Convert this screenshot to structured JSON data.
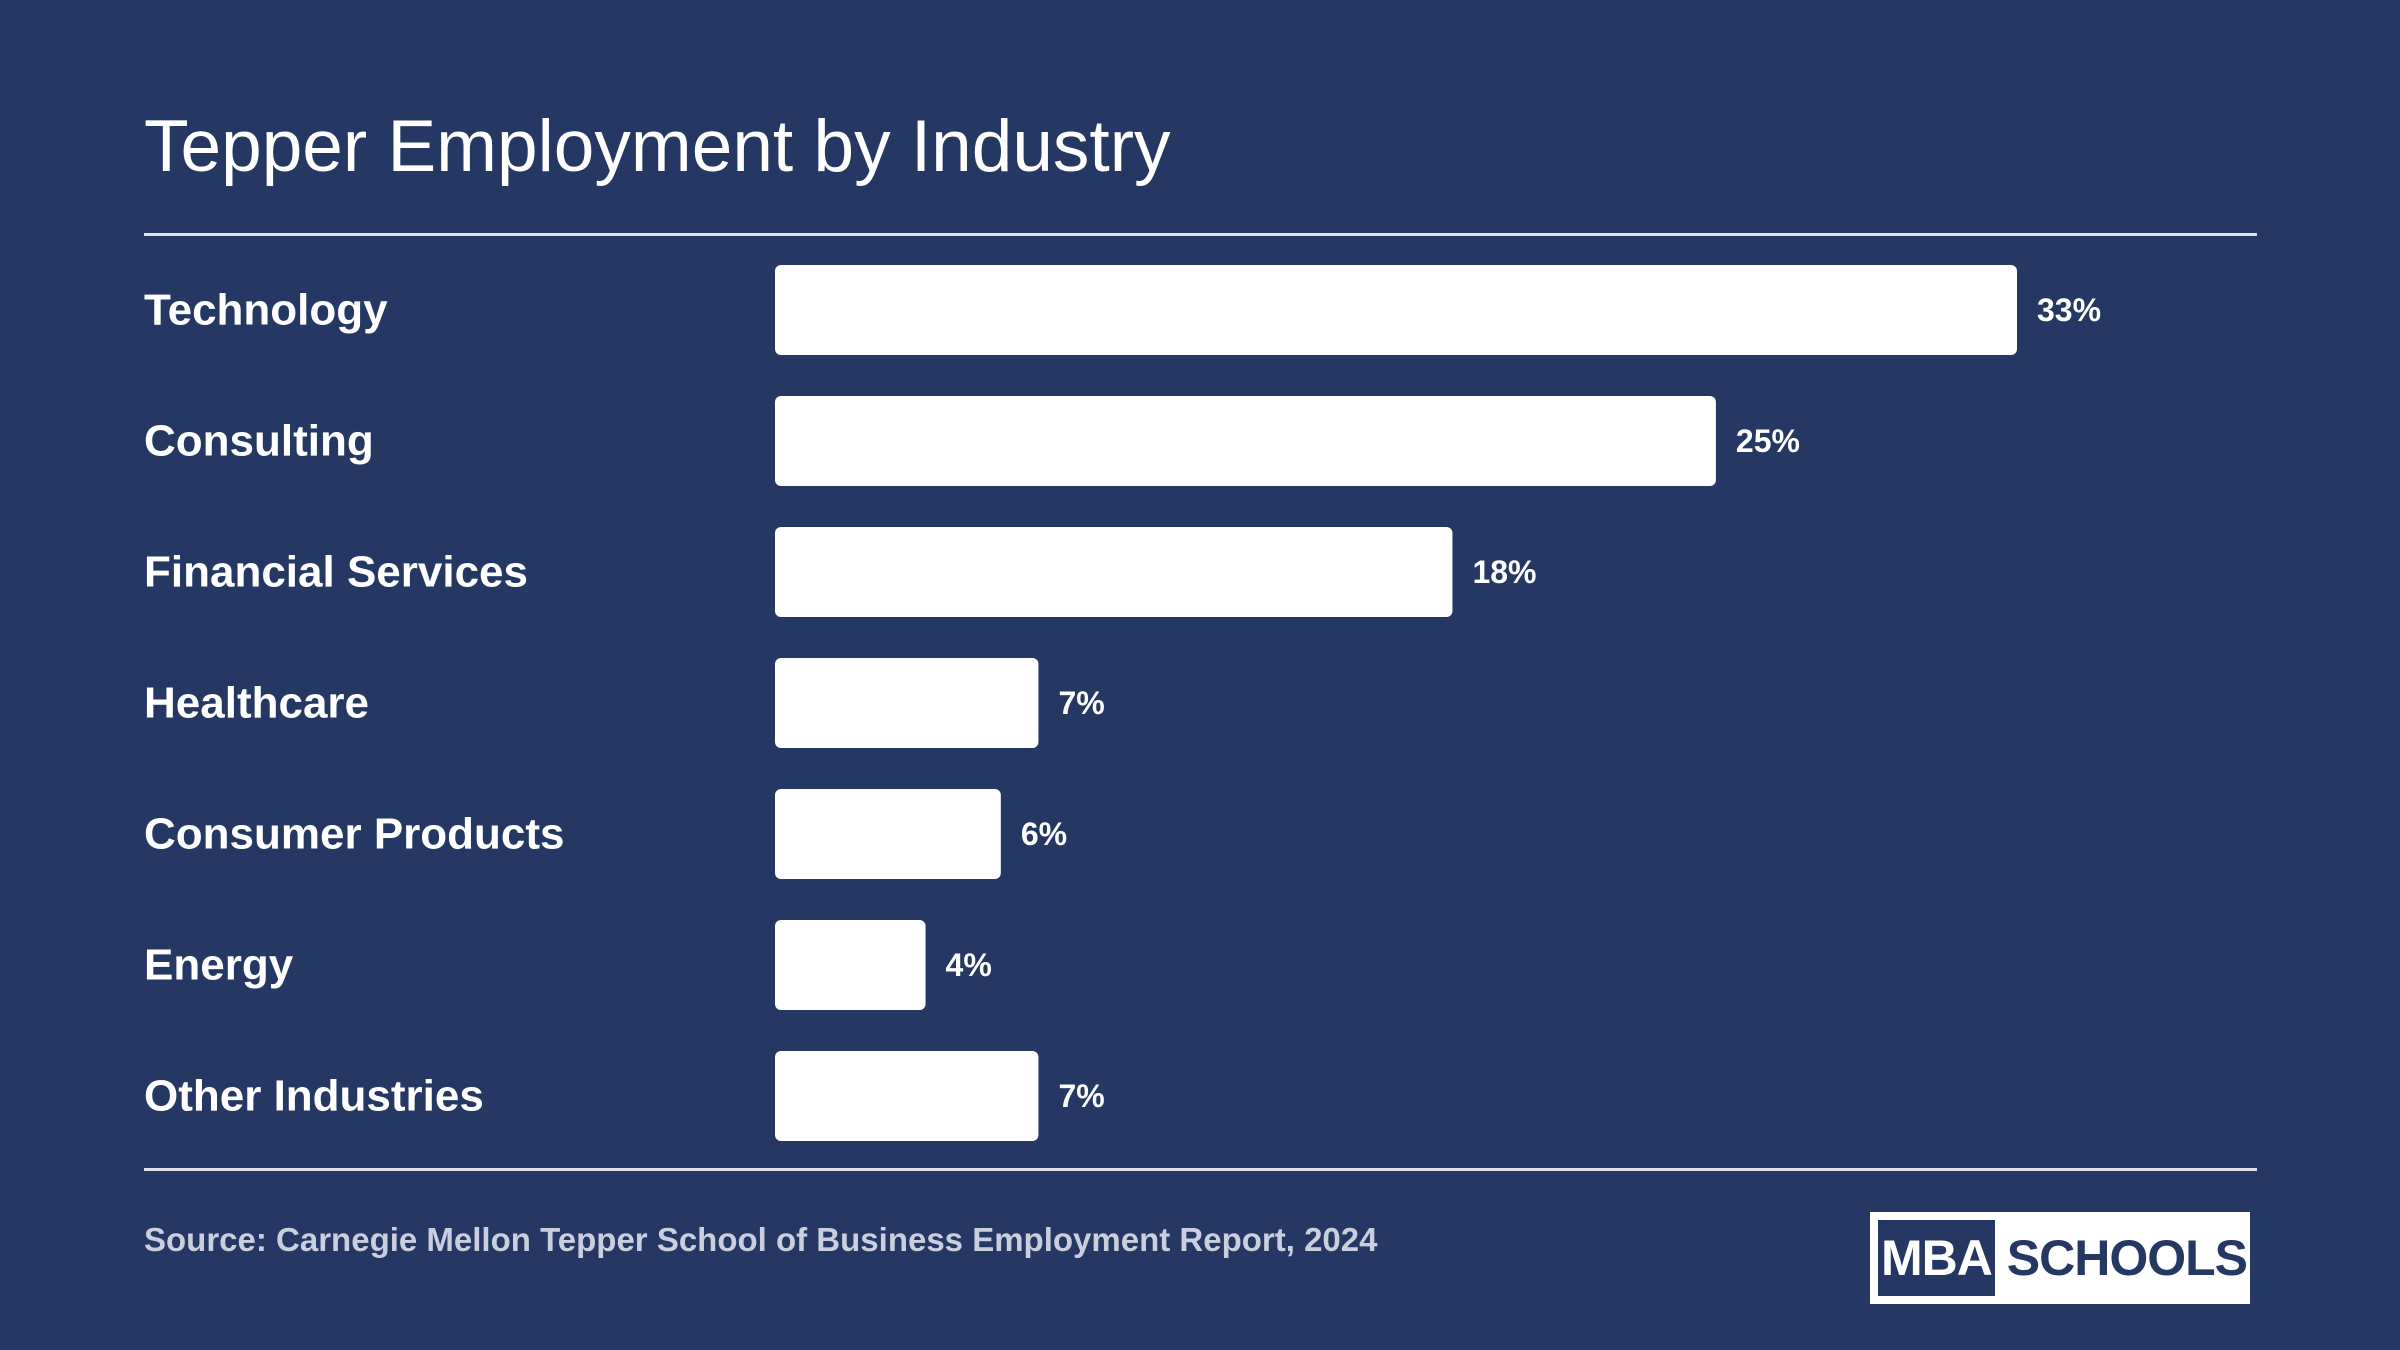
{
  "header": {
    "title": "Tepper Employment by Industry"
  },
  "footer": {
    "source": "Source: Carnegie Mellon Tepper School of Business Employment Report, 2024"
  },
  "logo": {
    "left": "MBA",
    "right": "SCHOOLS"
  },
  "colors": {
    "background": "#243863",
    "bar": "#ffffff",
    "text": "#ffffff",
    "source_text": "#c9cfdc"
  },
  "chart_data": {
    "type": "bar",
    "orientation": "horizontal",
    "title": "Tepper Employment by Industry",
    "categories": [
      "Technology",
      "Consulting",
      "Financial Services",
      "Healthcare",
      "Consumer Products",
      "Energy",
      "Other Industries"
    ],
    "values": [
      33,
      25,
      18,
      7,
      6,
      4,
      7
    ],
    "value_labels": [
      "33%",
      "25%",
      "18%",
      "7%",
      "6%",
      "4%",
      "7%"
    ],
    "unit": "%",
    "grid": false,
    "legend": "none"
  }
}
